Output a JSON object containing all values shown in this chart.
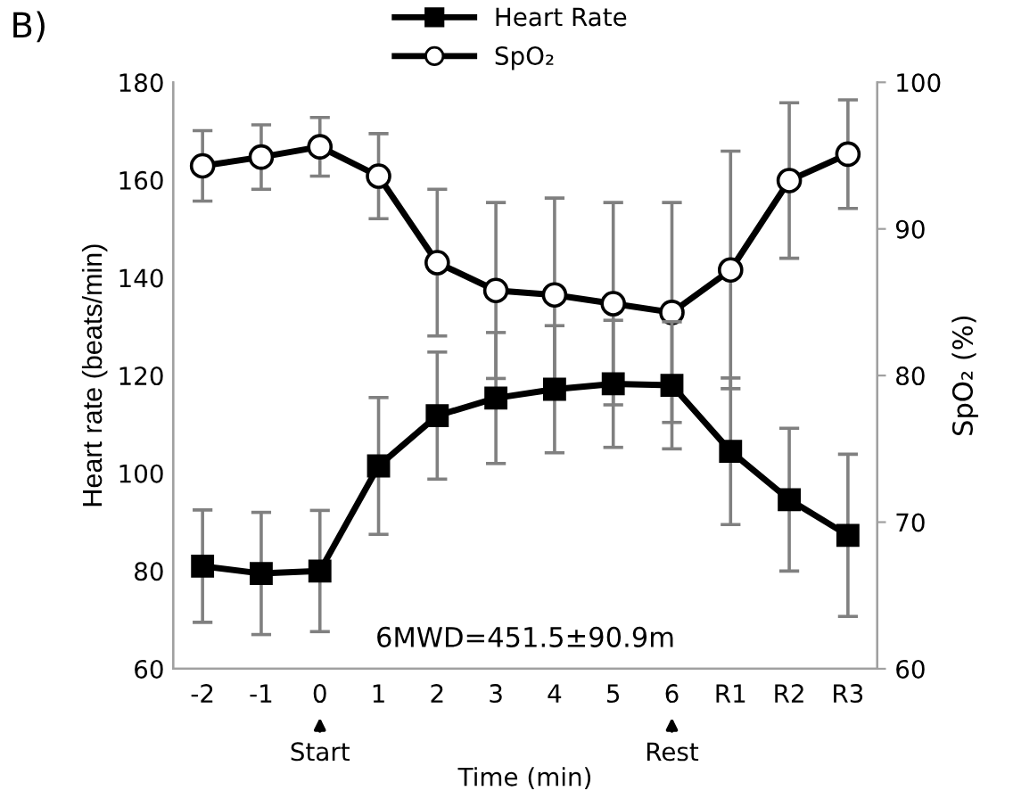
{
  "chart_data": {
    "type": "line",
    "xlabel": "Time (min)",
    "ylabel": "Heart rate (beats/min)",
    "y2label": "SpO₂ (%)",
    "categories": [
      "-2",
      "-1",
      "0",
      "1",
      "2",
      "3",
      "4",
      "5",
      "6",
      "R1",
      "R2",
      "R3"
    ],
    "series": [
      {
        "name": "Heart Rate",
        "color": "#000000",
        "marker": "square",
        "values": [
          81,
          79.5,
          80,
          101.5,
          111.8,
          115.4,
          117.2,
          118.3,
          118,
          104.5,
          94.6,
          87.3
        ],
        "errors": [
          11.5,
          12.5,
          12.4,
          14,
          13,
          13.4,
          13,
          13,
          13,
          15,
          14.6,
          16.6
        ]
      },
      {
        "name": "SpO₂",
        "color": "#000000",
        "marker": "circle",
        "axis": "y2",
        "values": [
          94.3,
          94.9,
          95.6,
          93.6,
          87.7,
          85.8,
          85.5,
          84.9,
          84.3,
          87.2,
          93.3,
          95.1
        ],
        "errors": [
          2.4,
          2.2,
          2,
          2.9,
          5,
          6,
          6.6,
          6.9,
          7.5,
          8.1,
          5.3,
          3.7
        ]
      }
    ],
    "ylim": [
      60,
      180
    ],
    "yticks": [
      60,
      80,
      100,
      120,
      140,
      160,
      180
    ],
    "y2lim": [
      60,
      100
    ],
    "y2ticks": [
      60,
      70,
      80,
      90,
      100
    ],
    "grid": false,
    "legend": "top",
    "line_style": "solid",
    "annotations": [
      "B)",
      "6MWD=451.5±90.9m",
      "Start",
      "Rest"
    ]
  }
}
